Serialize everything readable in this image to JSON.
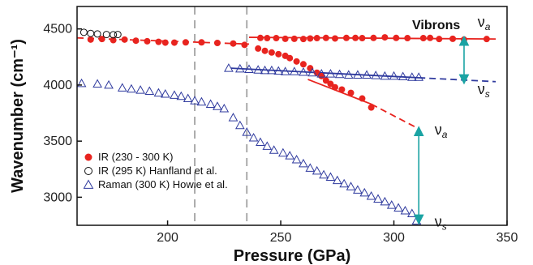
{
  "chart_data": {
    "type": "scatter",
    "xlabel": "Pressure (GPa)",
    "ylabel": "Wavenumber (cm⁻¹)",
    "xlim": [
      160,
      350
    ],
    "ylim": [
      2750,
      4700
    ],
    "x_ticks": [
      "200",
      "250",
      "300",
      "350"
    ],
    "y_ticks": [
      "3000",
      "3500",
      "4000",
      "4500"
    ],
    "title_label": "Vibrons",
    "vertical_dashed_lines": [
      212,
      235
    ],
    "series": [
      {
        "name": "IR (230 - 300 K)",
        "marker": "filled-circle",
        "color": "#e8241f",
        "points": [
          [
            166,
            4405
          ],
          [
            171,
            4410
          ],
          [
            176,
            4400
          ],
          [
            181,
            4405
          ],
          [
            186,
            4395
          ],
          [
            191,
            4390
          ],
          [
            196,
            4385
          ],
          [
            199,
            4378
          ],
          [
            203,
            4378
          ],
          [
            208,
            4380
          ],
          [
            215,
            4380
          ],
          [
            222,
            4375
          ],
          [
            229,
            4370
          ],
          [
            234,
            4358
          ],
          [
            241,
            4420
          ],
          [
            244,
            4418
          ],
          [
            248,
            4418
          ],
          [
            252,
            4412
          ],
          [
            256,
            4412
          ],
          [
            260,
            4410
          ],
          [
            263,
            4415
          ],
          [
            266,
            4418
          ],
          [
            270,
            4420
          ],
          [
            274,
            4415
          ],
          [
            279,
            4420
          ],
          [
            283,
            4420
          ],
          [
            286,
            4418
          ],
          [
            291,
            4420
          ],
          [
            296,
            4425
          ],
          [
            301,
            4420
          ],
          [
            306,
            4418
          ],
          [
            313,
            4418
          ],
          [
            316,
            4420
          ],
          [
            320,
            4410
          ],
          [
            326,
            4412
          ],
          [
            331,
            4405
          ],
          [
            341,
            4410
          ],
          [
            240,
            4325
          ],
          [
            243,
            4305
          ],
          [
            246,
            4290
          ],
          [
            249,
            4275
          ],
          [
            252,
            4260
          ],
          [
            254,
            4240
          ],
          [
            257,
            4210
          ],
          [
            260,
            4185
          ],
          [
            263,
            4150
          ],
          [
            266,
            4110
          ],
          [
            268,
            4080
          ],
          [
            270,
            4040
          ],
          [
            272,
            4010
          ],
          [
            274,
            3980
          ],
          [
            277,
            3960
          ],
          [
            281,
            3930
          ],
          [
            286,
            3880
          ],
          [
            290,
            3800
          ]
        ]
      },
      {
        "name": "IR (295 K) Hanfland et al.",
        "marker": "open-circle",
        "color": "#111111",
        "points": [
          [
            163,
            4470
          ],
          [
            166,
            4460
          ],
          [
            169,
            4455
          ],
          [
            173,
            4450
          ],
          [
            176,
            4448
          ],
          [
            178,
            4450
          ]
        ]
      },
      {
        "name": "Raman (300 K) Howie et al.",
        "marker": "open-triangle",
        "color": "#2f3a9e",
        "points": [
          [
            162,
            4015
          ],
          [
            169,
            4010
          ],
          [
            174,
            4000
          ],
          [
            180,
            3975
          ],
          [
            184,
            3965
          ],
          [
            188,
            3955
          ],
          [
            192,
            3945
          ],
          [
            196,
            3930
          ],
          [
            199,
            3920
          ],
          [
            203,
            3910
          ],
          [
            206,
            3900
          ],
          [
            209,
            3880
          ],
          [
            212,
            3860
          ],
          [
            215,
            3850
          ],
          [
            219,
            3830
          ],
          [
            222,
            3810
          ],
          [
            225,
            3790
          ],
          [
            229,
            3710
          ],
          [
            232,
            3640
          ],
          [
            235,
            3580
          ],
          [
            238,
            3530
          ],
          [
            241,
            3490
          ],
          [
            244,
            3455
          ],
          [
            247,
            3420
          ],
          [
            251,
            3395
          ],
          [
            254,
            3370
          ],
          [
            257,
            3335
          ],
          [
            260,
            3300
          ],
          [
            263,
            3260
          ],
          [
            266,
            3235
          ],
          [
            269,
            3200
          ],
          [
            272,
            3180
          ],
          [
            275,
            3150
          ],
          [
            278,
            3120
          ],
          [
            281,
            3095
          ],
          [
            284,
            3065
          ],
          [
            287,
            3040
          ],
          [
            290,
            3010
          ],
          [
            293,
            2985
          ],
          [
            296,
            2960
          ],
          [
            299,
            2930
          ],
          [
            302,
            2905
          ],
          [
            305,
            2880
          ],
          [
            308,
            2855
          ],
          [
            310,
            2790
          ],
          [
            227,
            4150
          ],
          [
            232,
            4145
          ],
          [
            236,
            4140
          ],
          [
            240,
            4135
          ],
          [
            243,
            4130
          ],
          [
            246,
            4130
          ],
          [
            249,
            4125
          ],
          [
            252,
            4120
          ],
          [
            256,
            4120
          ],
          [
            260,
            4115
          ],
          [
            264,
            4110
          ],
          [
            268,
            4100
          ],
          [
            272,
            4100
          ],
          [
            276,
            4095
          ],
          [
            280,
            4090
          ],
          [
            284,
            4090
          ],
          [
            288,
            4090
          ],
          [
            292,
            4085
          ],
          [
            296,
            4080
          ],
          [
            300,
            4080
          ],
          [
            304,
            4075
          ],
          [
            308,
            4070
          ],
          [
            311,
            4070
          ]
        ]
      }
    ],
    "fit_lines": [
      {
        "color": "#e8241f",
        "style": "solid",
        "points": [
          [
            236,
            4425
          ],
          [
            345,
            4410
          ]
        ]
      },
      {
        "color": "#e8241f",
        "style": "dashed",
        "points": [
          [
            160,
            4420
          ],
          [
            236,
            4365
          ]
        ]
      },
      {
        "color": "#e8241f",
        "style": "solid",
        "points": [
          [
            262,
            4050
          ],
          [
            290,
            3830
          ]
        ]
      },
      {
        "color": "#e8241f",
        "style": "dashed",
        "points": [
          [
            290,
            3830
          ],
          [
            311,
            3610
          ]
        ]
      },
      {
        "color": "#2f3a9e",
        "style": "solid",
        "points": [
          [
            228,
            4150
          ],
          [
            311,
            4065
          ]
        ]
      },
      {
        "color": "#2f3a9e",
        "style": "dashed",
        "points": [
          [
            311,
            4065
          ],
          [
            345,
            4030
          ]
        ]
      }
    ],
    "arrows": [
      {
        "x": 331,
        "y1": 4395,
        "y2": 4050
      },
      {
        "x": 311,
        "y1": 3590,
        "y2": 2800
      }
    ],
    "annotations": [
      {
        "text": "ν",
        "sub": "a",
        "x": 337,
        "y": 4520
      },
      {
        "text": "ν",
        "sub": "s",
        "x": 337,
        "y": 3920
      },
      {
        "text": "ν",
        "sub": "a",
        "x": 318,
        "y": 3560
      },
      {
        "text": "ν",
        "sub": "s",
        "x": 318,
        "y": 2740
      }
    ],
    "legend_position": "bottom-left"
  }
}
